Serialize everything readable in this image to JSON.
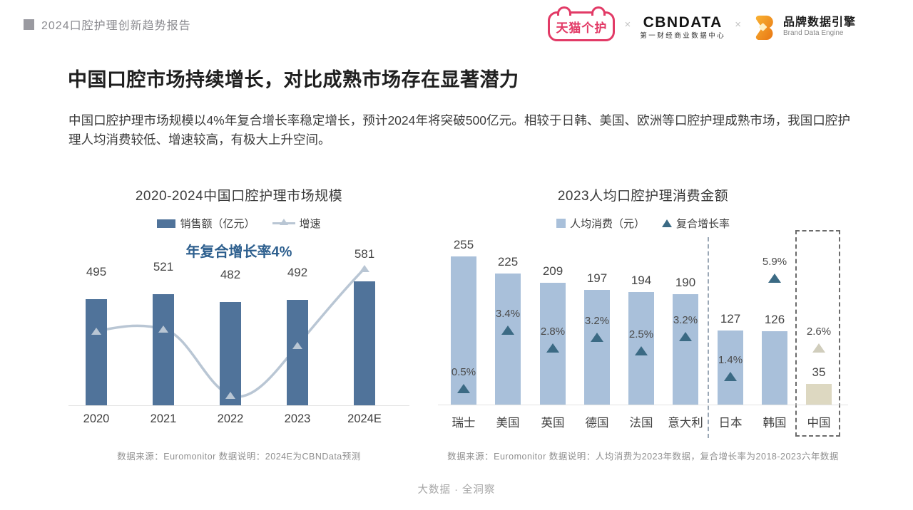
{
  "header": {
    "report_title": "2024口腔护理创新趋势报告",
    "logos": {
      "tmall_label": "天猫个护",
      "separator": "×",
      "cbndata_label": "CBNDATA",
      "cbndata_sub": "第一财经商业数据中心",
      "bde_label": "品牌数据引擎",
      "bde_sub": "Brand Data Engine"
    }
  },
  "page_title": "中国口腔市场持续增长，对比成熟市场存在显著潜力",
  "intro_text": "中国口腔护理市场规模以4%年复合增长率稳定增长，预计2024年将突破500亿元。相较于日韩、美国、欧洲等口腔护理成熟市场，我国口腔护理人均消费较低、增速较高，有极大上升空间。",
  "chart_data": [
    {
      "type": "bar",
      "title": "2020-2024中国口腔护理市场规模",
      "legend": [
        "销售额（亿元）",
        "增速"
      ],
      "legend_position": "top",
      "annotation": "年复合增长率4%",
      "categories": [
        "2020",
        "2021",
        "2022",
        "2023",
        "2024E"
      ],
      "series": [
        {
          "name": "销售额（亿元）",
          "values": [
            495,
            521,
            482,
            492,
            581
          ]
        },
        {
          "name": "增速",
          "style": "smooth line with triangle markers, dips in 2022 then rises sharply to 2024E"
        }
      ],
      "ylim": [
        0,
        660
      ],
      "grid": false,
      "source": "数据来源：Euromonitor    数据说明：2024E为CBNData预测"
    },
    {
      "type": "bar",
      "title": "2023人均口腔护理消费金额",
      "legend": [
        "人均消费（元）",
        "复合增长率"
      ],
      "legend_position": "top",
      "categories": [
        "瑞士",
        "美国",
        "英国",
        "德国",
        "法国",
        "意大利",
        "日本",
        "韩国",
        "中国"
      ],
      "series": [
        {
          "name": "人均消费（元）",
          "values": [
            255,
            225,
            209,
            197,
            194,
            190,
            127,
            126,
            35
          ]
        },
        {
          "name": "复合增长率",
          "values": [
            "0.5%",
            "3.4%",
            "2.8%",
            "3.2%",
            "2.5%",
            "3.2%",
            "1.4%",
            "5.9%",
            "2.6%"
          ]
        }
      ],
      "highlight": "中国 column outlined with dashed box; its bar and marker are beige",
      "separators": "dashed vertical line between 意大利 and 日本",
      "ylim": [
        0,
        290
      ],
      "grid": false,
      "source": "数据来源：Euromonitor   数据说明：人均消费为2023年数据，复合增长率为2018-2023六年数据"
    }
  ],
  "colors": {
    "dark_bar": "#50739a",
    "light_bar": "#a9c0da",
    "china_bar": "#ddd8c1",
    "cagr_triangle": "#3b6a84",
    "china_triangle": "#d0cdbc",
    "growth_line": "#b9c6d4",
    "annotation_text": "#2d5f8e",
    "tmall_pink": "#e23a66",
    "bde_orange": "#ef8c1e"
  },
  "footer": "大数据 · 全洞察"
}
